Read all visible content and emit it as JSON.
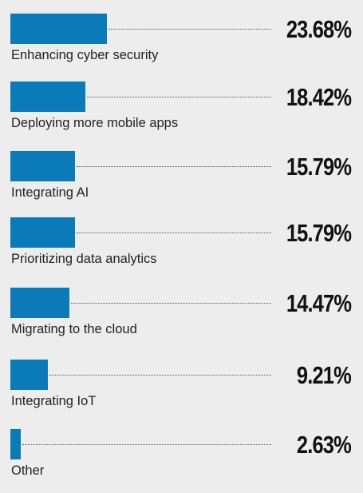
{
  "chart_data": {
    "type": "bar",
    "orientation": "horizontal",
    "categories": [
      "Enhancing cyber security",
      "Deploying more mobile apps",
      "Integrating AI",
      "Prioritizing data analytics",
      "Migrating to the cloud",
      "Integrating IoT",
      "Other"
    ],
    "values": [
      23.68,
      18.42,
      15.79,
      15.79,
      14.47,
      9.21,
      2.63
    ],
    "value_labels": [
      "23.68%",
      "18.42%",
      "15.79%",
      "15.79%",
      "14.47%",
      "9.21%",
      "2.63%"
    ],
    "unit": "%",
    "bar_color": "#0a7ab8",
    "background_color": "#ededed",
    "title": "",
    "xlabel": "",
    "ylabel": "",
    "grid": false,
    "legend": "none"
  }
}
